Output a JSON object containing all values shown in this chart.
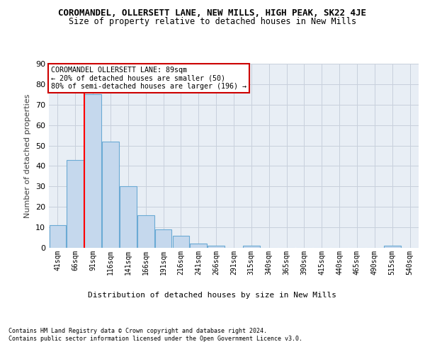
{
  "title": "COROMANDEL, OLLERSETT LANE, NEW MILLS, HIGH PEAK, SK22 4JE",
  "subtitle": "Size of property relative to detached houses in New Mills",
  "xlabel": "Distribution of detached houses by size in New Mills",
  "ylabel": "Number of detached properties",
  "categories": [
    "41sqm",
    "66sqm",
    "91sqm",
    "116sqm",
    "141sqm",
    "166sqm",
    "191sqm",
    "216sqm",
    "241sqm",
    "266sqm",
    "291sqm",
    "315sqm",
    "340sqm",
    "365sqm",
    "390sqm",
    "415sqm",
    "440sqm",
    "465sqm",
    "490sqm",
    "515sqm",
    "540sqm"
  ],
  "values": [
    11,
    43,
    75,
    52,
    30,
    16,
    9,
    6,
    2,
    1,
    0,
    1,
    0,
    0,
    0,
    0,
    0,
    0,
    0,
    1,
    0
  ],
  "bar_color": "#c5d8ed",
  "bar_edge_color": "#6aaad4",
  "red_line_index": 2,
  "ylim": [
    0,
    90
  ],
  "yticks": [
    0,
    10,
    20,
    30,
    40,
    50,
    60,
    70,
    80,
    90
  ],
  "annotation_text": "COROMANDEL OLLERSETT LANE: 89sqm\n← 20% of detached houses are smaller (50)\n80% of semi-detached houses are larger (196) →",
  "annotation_box_color": "#ffffff",
  "annotation_box_edge": "#cc0000",
  "footnote1": "Contains HM Land Registry data © Crown copyright and database right 2024.",
  "footnote2": "Contains public sector information licensed under the Open Government Licence v3.0.",
  "title_fontsize": 9,
  "subtitle_fontsize": 8.5,
  "background_color": "#ffffff",
  "grid_color": "#c8d0dc",
  "axis_bg_color": "#e8eef5",
  "axis_label_color": "#404040"
}
